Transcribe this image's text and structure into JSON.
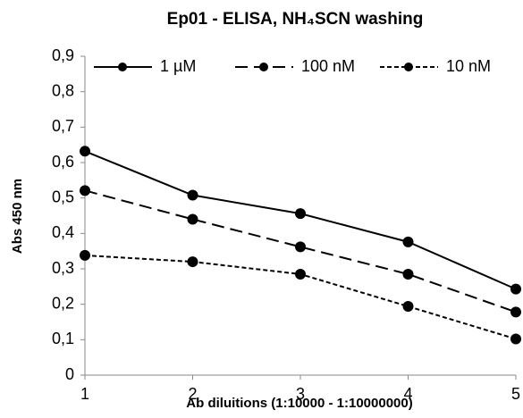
{
  "chart_data": {
    "type": "line",
    "title": "Ep01 - ELISA, NH₄SCN washing",
    "x_label": "Ab diluitions  (1:10000 - 1:10000000)",
    "y_label": "Abs 450 nm",
    "x": [
      1,
      2,
      3,
      4,
      5
    ],
    "xlim": [
      1,
      5
    ],
    "xticks": [
      1,
      2,
      3,
      4,
      5
    ],
    "ylim": [
      0,
      0.9
    ],
    "yticks": [
      0,
      {
        "value": 0.1,
        "label": "0,1"
      },
      {
        "value": 0.2,
        "label": "0,2"
      },
      {
        "value": 0.3,
        "label": "0,3"
      },
      {
        "value": 0.4,
        "label": "0,4"
      },
      {
        "value": 0.5,
        "label": "0,5"
      },
      {
        "value": 0.6,
        "label": "0,6"
      },
      {
        "value": 0.7,
        "label": "0,7"
      },
      {
        "value": 0.8,
        "label": "0,8"
      },
      {
        "value": 0.9,
        "label": "0,9"
      }
    ],
    "grid": false,
    "legend": "top",
    "series": [
      {
        "name": "1 µM",
        "color": "#000000",
        "line_style": "solid",
        "values": [
          0.632,
          0.508,
          0.456,
          0.376,
          0.243
        ]
      },
      {
        "name": "100 nM",
        "color": "#000000",
        "line_style": "dashed",
        "values": [
          0.521,
          0.44,
          0.362,
          0.285,
          0.178
        ]
      },
      {
        "name": "10 nM",
        "color": "#000000",
        "line_style": "dotted",
        "values": [
          0.338,
          0.32,
          0.285,
          0.194,
          0.102
        ]
      }
    ]
  }
}
